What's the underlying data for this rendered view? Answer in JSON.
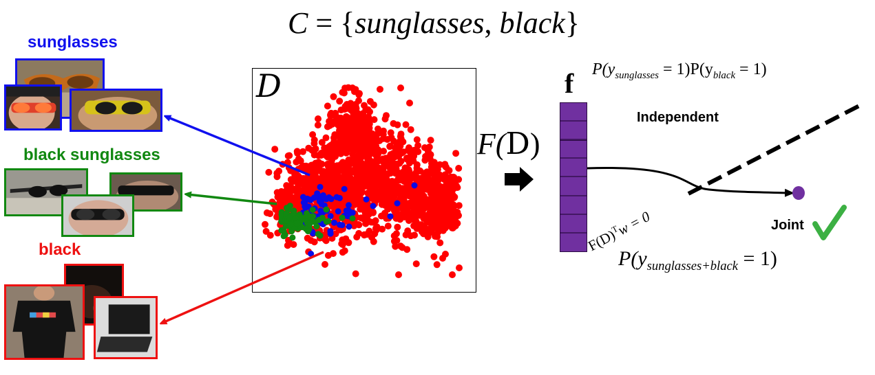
{
  "title": {
    "lhs": "C",
    "eq": " = {",
    "item1": "sunglasses",
    "sep": ", ",
    "item2": "black",
    "close": "}"
  },
  "groups": [
    {
      "label": "sunglasses",
      "color": "#1010ee"
    },
    {
      "label": "black sunglasses",
      "color": "#118811"
    },
    {
      "label": "black",
      "color": "#ee1111"
    }
  ],
  "dataset_symbol": "D",
  "transform": {
    "F": "F(",
    "D": "D",
    "close": ")"
  },
  "feature_symbol": "f",
  "prob_independent": {
    "P1": "P(y",
    "sub1": "sunglasses",
    "eq1": " = 1)P(y",
    "sub2": "black",
    "eq2": " = 1)"
  },
  "prob_joint": {
    "P": "P(y",
    "sub": "sunglasses+black",
    "eq": " = 1)"
  },
  "boundary": {
    "lhs": "F(D)",
    "sup": "T",
    "rhs": "w = 0"
  },
  "labels": {
    "independent": "Independent",
    "joint": "Joint"
  },
  "colors": {
    "red": "#ff0000",
    "blue": "#0a0ae6",
    "green": "#118811",
    "purple": "#7030a0",
    "check": "#3cb043"
  }
}
